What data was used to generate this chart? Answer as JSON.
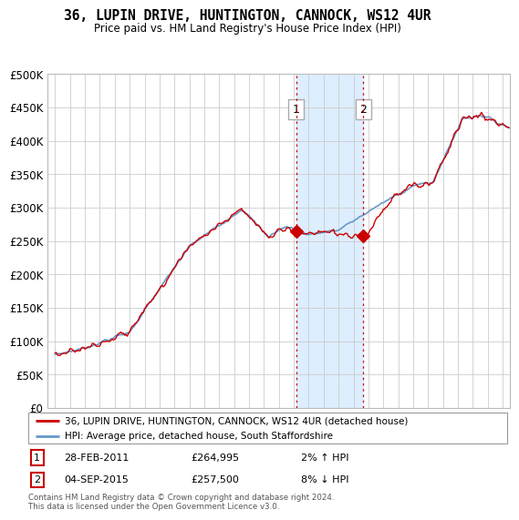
{
  "title": "36, LUPIN DRIVE, HUNTINGTON, CANNOCK, WS12 4UR",
  "subtitle": "Price paid vs. HM Land Registry's House Price Index (HPI)",
  "ylabel_ticks": [
    "£0",
    "£50K",
    "£100K",
    "£150K",
    "£200K",
    "£250K",
    "£300K",
    "£350K",
    "£400K",
    "£450K",
    "£500K"
  ],
  "ytick_values": [
    0,
    50000,
    100000,
    150000,
    200000,
    250000,
    300000,
    350000,
    400000,
    450000,
    500000
  ],
  "ylim": [
    0,
    500000
  ],
  "xlim_start": 1994.5,
  "xlim_end": 2025.5,
  "sale1": {
    "date_num": 2011.16,
    "price": 264995,
    "label": "1"
  },
  "sale2": {
    "date_num": 2015.67,
    "price": 257500,
    "label": "2"
  },
  "annotation1": {
    "date": "28-FEB-2011",
    "price": "£264,995",
    "pct": "2% ↑ HPI"
  },
  "annotation2": {
    "date": "04-SEP-2015",
    "price": "£257,500",
    "pct": "8% ↓ HPI"
  },
  "legend_line1": "36, LUPIN DRIVE, HUNTINGTON, CANNOCK, WS12 4UR (detached house)",
  "legend_line2": "HPI: Average price, detached house, South Staffordshire",
  "footer": "Contains HM Land Registry data © Crown copyright and database right 2024.\nThis data is licensed under the Open Government Licence v3.0.",
  "line_color_red": "#cc0000",
  "line_color_blue": "#6699cc",
  "shade_color": "#ddeeff",
  "background_color": "#ffffff",
  "grid_color": "#cccccc"
}
